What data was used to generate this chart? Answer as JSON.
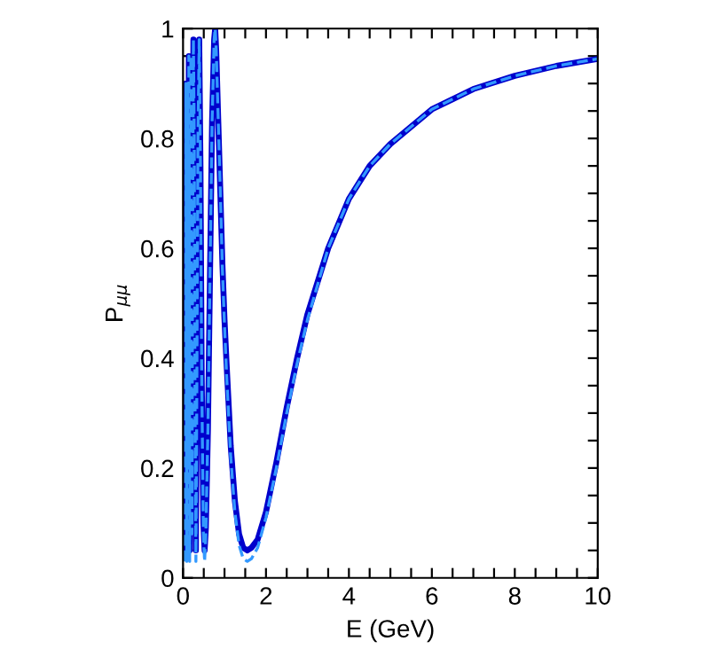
{
  "chart_data": {
    "type": "line",
    "xlabel": "E (GeV)",
    "ylabel": "P$_{μμ}$",
    "xlim": [
      0,
      10
    ],
    "ylim": [
      0,
      1
    ],
    "xticks": [
      0,
      {
        "value": 1,
        "label": null
      },
      2,
      {
        "value": 3,
        "label": null
      },
      4,
      {
        "value": 5,
        "label": null
      },
      6,
      {
        "value": 7,
        "label": null
      },
      8,
      {
        "value": 9,
        "label": null
      },
      10,
      {
        "value": 0.5,
        "label": null
      },
      {
        "value": 1.5,
        "label": null
      },
      {
        "value": 2.5,
        "label": null
      },
      {
        "value": 3.5,
        "label": null
      },
      {
        "value": 4.5,
        "label": null
      },
      {
        "value": 5.5,
        "label": null
      },
      {
        "value": 6.5,
        "label": null
      },
      {
        "value": 7.5,
        "label": null
      },
      {
        "value": 8.5,
        "label": null
      },
      {
        "value": 9.5,
        "label": null
      }
    ],
    "yticks": [
      0,
      0.2,
      0.4,
      0.6,
      0.8,
      1,
      {
        "value": 0.1,
        "label": null
      },
      {
        "value": 0.3,
        "label": null
      },
      {
        "value": 0.5,
        "label": null
      },
      {
        "value": 0.7,
        "label": null
      },
      {
        "value": 0.9,
        "label": null
      },
      {
        "value": 0.05,
        "label": null
      },
      {
        "value": 0.15,
        "label": null
      },
      {
        "value": 0.25,
        "label": null
      },
      {
        "value": 0.35,
        "label": null
      },
      {
        "value": 0.45,
        "label": null
      },
      {
        "value": 0.55,
        "label": null
      },
      {
        "value": 0.65,
        "label": null
      },
      {
        "value": 0.75,
        "label": null
      },
      {
        "value": 0.85,
        "label": null
      },
      {
        "value": 0.95,
        "label": null
      }
    ],
    "grid": false,
    "legend": false,
    "x": [
      0.05,
      0.07,
      0.09,
      0.1,
      0.11,
      0.12,
      0.13,
      0.14,
      0.15,
      0.16,
      0.175,
      0.19,
      0.2,
      0.215,
      0.23,
      0.25,
      0.27,
      0.29,
      0.31,
      0.33,
      0.36,
      0.39,
      0.42,
      0.45,
      0.49,
      0.52,
      0.55,
      0.6,
      0.65,
      0.7,
      0.75,
      0.775,
      0.8,
      0.85,
      0.9,
      0.95,
      1.0,
      1.05,
      1.15,
      1.25,
      1.35,
      1.45,
      1.55,
      1.65,
      1.8,
      2.0,
      2.25,
      2.5,
      2.75,
      3.0,
      3.5,
      4.0,
      4.5,
      5.0,
      6.0,
      7.0,
      8.0,
      9.0,
      10.0
    ],
    "series": [
      {
        "color": "#0000cc",
        "line_style": "solid",
        "values": [
          0.04,
          0.9,
          0.05,
          0.1,
          0.9,
          0.5,
          0.2,
          0.95,
          0.7,
          0.05,
          0.4,
          0.95,
          0.4,
          0.1,
          0.6,
          0.98,
          0.8,
          0.3,
          0.05,
          0.3,
          0.8,
          0.98,
          0.75,
          0.37,
          0.1,
          0.05,
          0.09,
          0.27,
          0.55,
          0.83,
          0.98,
          1.0,
          0.96,
          0.83,
          0.7,
          0.57,
          0.47,
          0.39,
          0.24,
          0.14,
          0.08,
          0.055,
          0.05,
          0.055,
          0.07,
          0.12,
          0.21,
          0.31,
          0.4,
          0.48,
          0.6,
          0.69,
          0.75,
          0.79,
          0.853,
          0.89,
          0.914,
          0.932,
          0.945
        ]
      },
      {
        "color": "#3399ff",
        "line_style": "dashed",
        "values": [
          0.03,
          0.9,
          0.03,
          0.1,
          0.9,
          0.5,
          0.2,
          0.95,
          0.7,
          0.03,
          0.4,
          0.95,
          0.4,
          0.08,
          0.6,
          0.98,
          0.8,
          0.3,
          0.03,
          0.3,
          0.8,
          0.98,
          0.75,
          0.37,
          0.08,
          0.03,
          0.08,
          0.27,
          0.55,
          0.83,
          0.98,
          1.0,
          0.96,
          0.83,
          0.7,
          0.56,
          0.46,
          0.37,
          0.22,
          0.12,
          0.06,
          0.035,
          0.03,
          0.035,
          0.055,
          0.11,
          0.2,
          0.3,
          0.39,
          0.47,
          0.6,
          0.69,
          0.75,
          0.79,
          0.853,
          0.89,
          0.914,
          0.932,
          0.945
        ]
      }
    ]
  }
}
